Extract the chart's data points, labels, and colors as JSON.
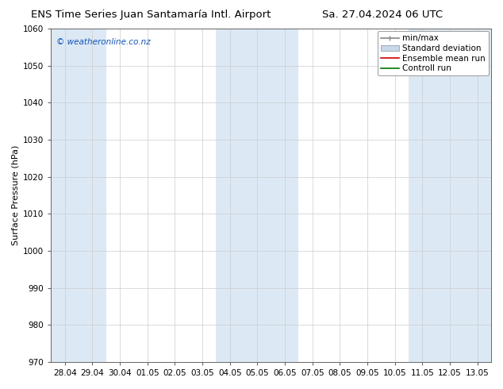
{
  "title_left": "ENS Time Series Juan Santamaría Intl. Airport",
  "title_right": "Sa. 27.04.2024 06 UTC",
  "ylabel": "Surface Pressure (hPa)",
  "ylim": [
    970,
    1060
  ],
  "yticks": [
    970,
    980,
    990,
    1000,
    1010,
    1020,
    1030,
    1040,
    1050,
    1060
  ],
  "xtick_labels": [
    "28.04",
    "29.04",
    "30.04",
    "01.05",
    "02.05",
    "03.05",
    "04.05",
    "05.05",
    "06.05",
    "07.05",
    "08.05",
    "09.05",
    "10.05",
    "11.05",
    "12.05",
    "13.05"
  ],
  "shade_color": "#dce9f5",
  "shaded_indices": [
    0,
    1,
    6,
    7,
    8,
    13,
    14,
    15
  ],
  "background_color": "#ffffff",
  "watermark": "© weatheronline.co.nz",
  "legend_labels": [
    "min/max",
    "Standard deviation",
    "Ensemble mean run",
    "Controll run"
  ],
  "legend_line_color": "#888888",
  "legend_std_color": "#c8d8e8",
  "legend_ens_color": "#cc0000",
  "legend_ctrl_color": "#007700",
  "title_fontsize": 9.5,
  "ylabel_fontsize": 8,
  "tick_fontsize": 7.5,
  "legend_fontsize": 7.5,
  "watermark_fontsize": 7.5
}
